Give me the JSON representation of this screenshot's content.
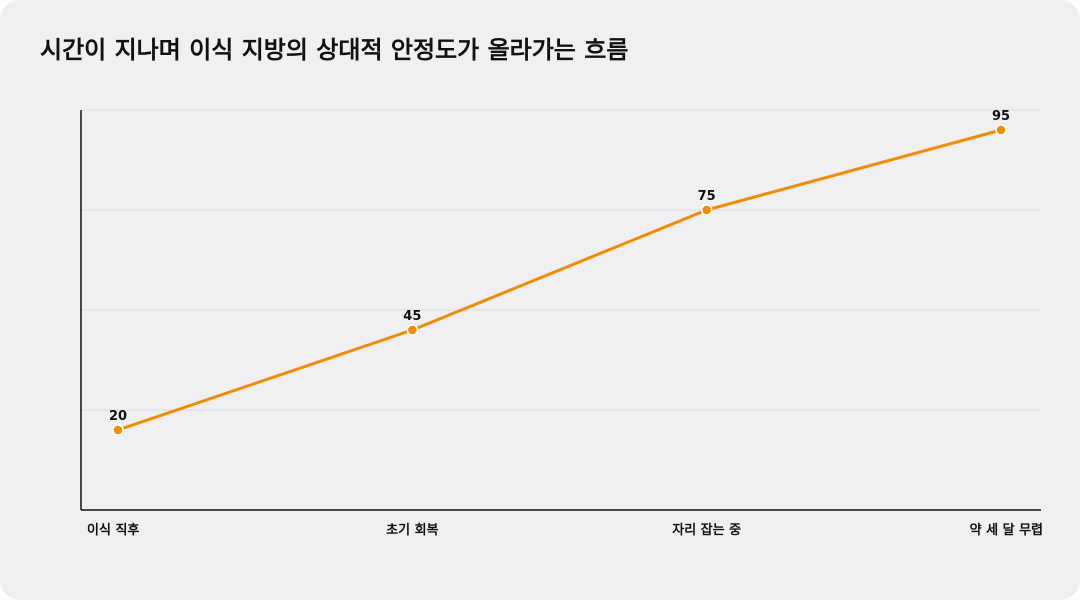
{
  "title": "시간이 지나며 이식 지방의 상대적 안정도가 올라가는 흐름",
  "colors": {
    "background": "#f0f0f3",
    "line": "#f08c00",
    "point_fill": "#f08c00",
    "point_stroke": "#ffffff",
    "axis": "#111111",
    "grid": "#dcdce0"
  },
  "chart_data": {
    "type": "line",
    "title": "시간이 지나며 이식 지방의 상대적 안정도가 올라가는 흐름",
    "categories": [
      "이식 직후",
      "초기 회복",
      "자리 잡는 중",
      "약 세 달 무렵"
    ],
    "series": [
      {
        "values": [
          20,
          45,
          75,
          95
        ]
      }
    ],
    "ylim": [
      0,
      100
    ],
    "yticks_shown": false,
    "grid": true,
    "data_labels": true,
    "legend": "none",
    "xlabel": "",
    "ylabel": ""
  }
}
